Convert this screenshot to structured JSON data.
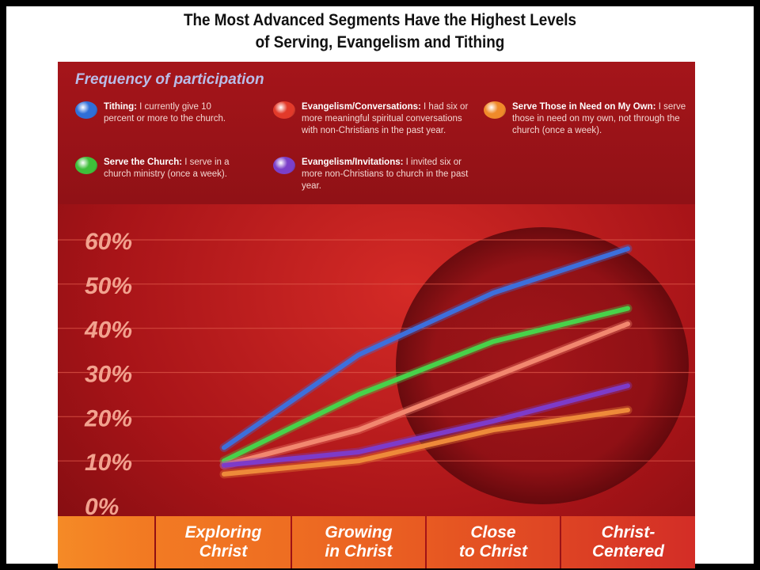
{
  "title": {
    "line1": "The Most Advanced Segments Have the Highest Levels",
    "line2": "of Serving, Evangelism and Tithing"
  },
  "legend": {
    "title": "Frequency of participation",
    "items": [
      {
        "key": "Tithing:",
        "text": "I currently give 10 percent or more to the church.",
        "color": "#2f6fd8"
      },
      {
        "key": "Evangelism/Conversations:",
        "text": "I had six or more meaningful spiritual conversations with non-Christians in the past year.",
        "color": "#e23a2a"
      },
      {
        "key": "Serve Those in Need on My Own:",
        "text": "I serve those in need on my own, not through the church (once a week).",
        "color": "#f08a2a"
      },
      {
        "key": "Serve the Church:",
        "text": "I serve in a church ministry (once a week).",
        "color": "#3fbf3a"
      },
      {
        "key": "Evangelism/Invitations:",
        "text": "I invited six or more non-Christians to church in the past year.",
        "color": "#7b3fc9"
      }
    ]
  },
  "chart_data": {
    "type": "line",
    "categories": [
      "Exploring Christ",
      "Growing in Christ",
      "Close to Christ",
      "Christ-Centered"
    ],
    "category_lines": [
      [
        "Exploring",
        "Christ"
      ],
      [
        "Growing",
        "in Christ"
      ],
      [
        "Close",
        "to Christ"
      ],
      [
        "Christ-",
        "Centered"
      ]
    ],
    "y_ticks": [
      "0%",
      "10%",
      "20%",
      "30%",
      "40%",
      "50%",
      "60%"
    ],
    "ylim": [
      0,
      60
    ],
    "grid": true,
    "legend_position": "top",
    "series": [
      {
        "name": "Tithing",
        "color": "#3d6fdc",
        "values": [
          13,
          34,
          48,
          58
        ]
      },
      {
        "name": "Serve the Church",
        "color": "#48d24a",
        "values": [
          10,
          25,
          37,
          44.5
        ]
      },
      {
        "name": "Evangelism/Conversations",
        "color": "#f2876f",
        "values": [
          9,
          17,
          29,
          41
        ]
      },
      {
        "name": "Evangelism/Invitations",
        "color": "#7d3bc9",
        "values": [
          9,
          12,
          19,
          27
        ]
      },
      {
        "name": "Serve Those in Need on My Own",
        "color": "#ee8a3a",
        "values": [
          7,
          10,
          17,
          21.5
        ]
      }
    ]
  },
  "colors": {
    "tick_label": "#f2a28f",
    "panel": "#b5191c",
    "cat_bar_left": "#f07d24",
    "cat_bar_right": "#d32d26"
  }
}
